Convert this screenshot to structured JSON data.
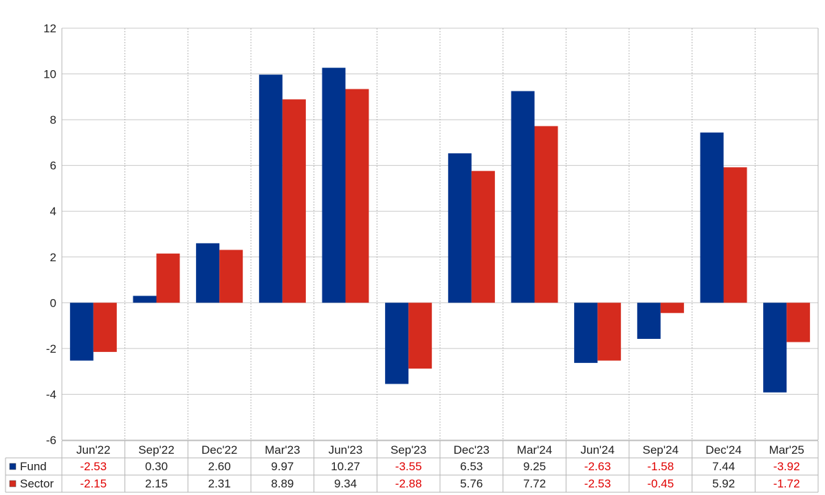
{
  "chart_data": {
    "type": "bar",
    "categories": [
      "Jun'22",
      "Sep'22",
      "Dec'22",
      "Mar'23",
      "Jun'23",
      "Sep'23",
      "Dec'23",
      "Mar'24",
      "Jun'24",
      "Sep'24",
      "Dec'24",
      "Mar'25"
    ],
    "series": [
      {
        "name": "Fund",
        "color": "#00338d",
        "values": [
          -2.53,
          0.3,
          2.6,
          9.97,
          10.27,
          -3.55,
          6.53,
          9.25,
          -2.63,
          -1.58,
          7.44,
          -3.92
        ]
      },
      {
        "name": "Sector",
        "color": "#d52b1e",
        "values": [
          -2.15,
          2.15,
          2.31,
          8.89,
          9.34,
          -2.88,
          5.76,
          7.72,
          -2.53,
          -0.45,
          5.92,
          -1.72
        ]
      }
    ],
    "series_labels": {
      "fund": "Fund",
      "sector": "Sector"
    },
    "table_values": {
      "fund": [
        "-2.53",
        "0.30",
        "2.60",
        "9.97",
        "10.27",
        "-3.55",
        "6.53",
        "9.25",
        "-2.63",
        "-1.58",
        "7.44",
        "-3.92"
      ],
      "sector": [
        "-2.15",
        "2.15",
        "2.31",
        "8.89",
        "9.34",
        "-2.88",
        "5.76",
        "7.72",
        "-2.53",
        "-0.45",
        "5.92",
        "-1.72"
      ]
    },
    "ylim": [
      -6,
      12
    ],
    "yticks": [
      "12",
      "10",
      "8",
      "6",
      "4",
      "2",
      "0",
      "-2",
      "-4",
      "-6"
    ],
    "negative_value_color": "#e00000",
    "grid": true,
    "legend_placement": "data-table-left"
  }
}
